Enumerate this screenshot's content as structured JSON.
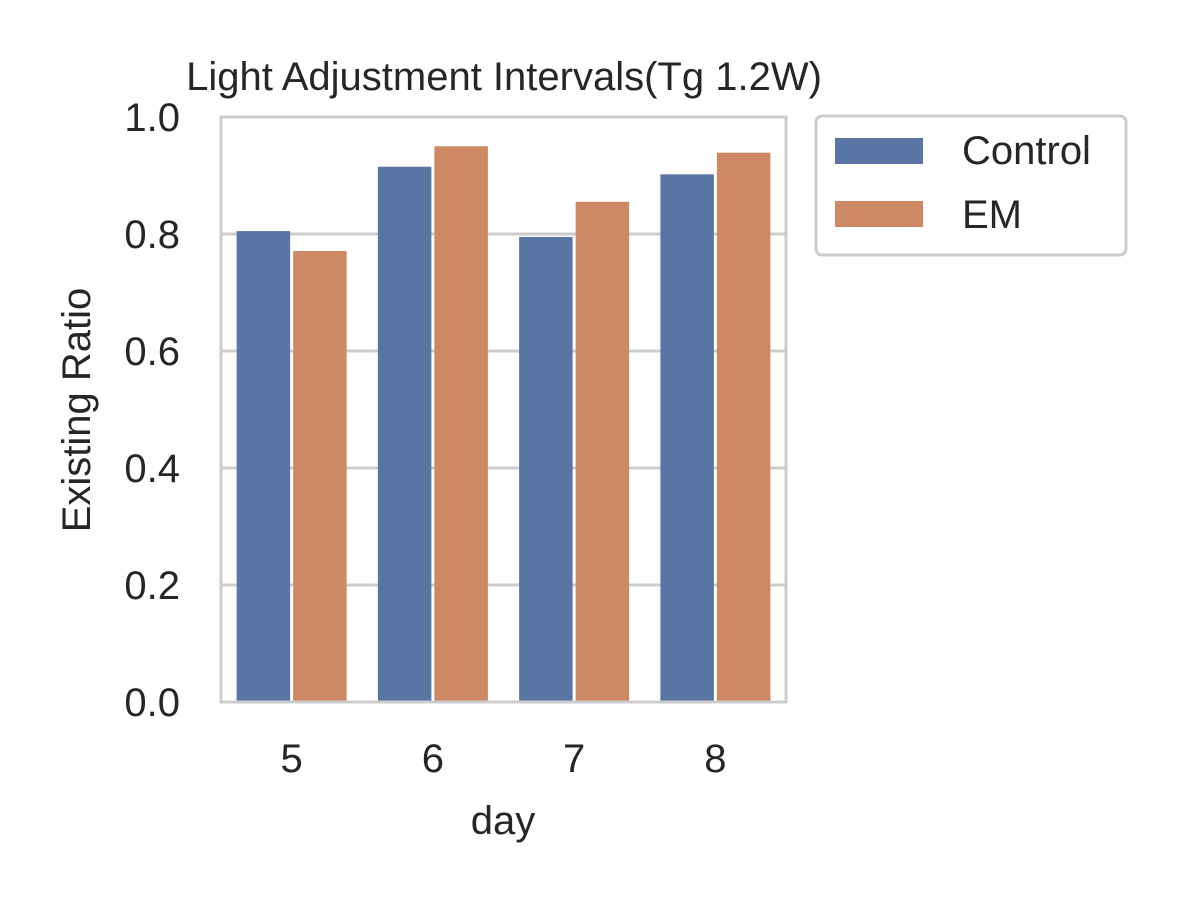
{
  "chart_data": {
    "type": "bar",
    "title": "Light Adjustment Intervals(Tg 1.2W)",
    "xlabel": "day",
    "ylabel": "Existing Ratio",
    "categories": [
      "5",
      "6",
      "7",
      "8"
    ],
    "series": [
      {
        "name": "Control",
        "color": "#5975a4",
        "values": [
          0.805,
          0.915,
          0.795,
          0.902
        ]
      },
      {
        "name": "EM",
        "color": "#cc8963",
        "values": [
          0.771,
          0.95,
          0.855,
          0.939
        ]
      }
    ],
    "ylim": [
      0.0,
      1.0
    ],
    "yticks": [
      "0.0",
      "0.2",
      "0.4",
      "0.6",
      "0.8",
      "1.0"
    ],
    "grid": "horizontal",
    "legend": "outside-top-right"
  }
}
